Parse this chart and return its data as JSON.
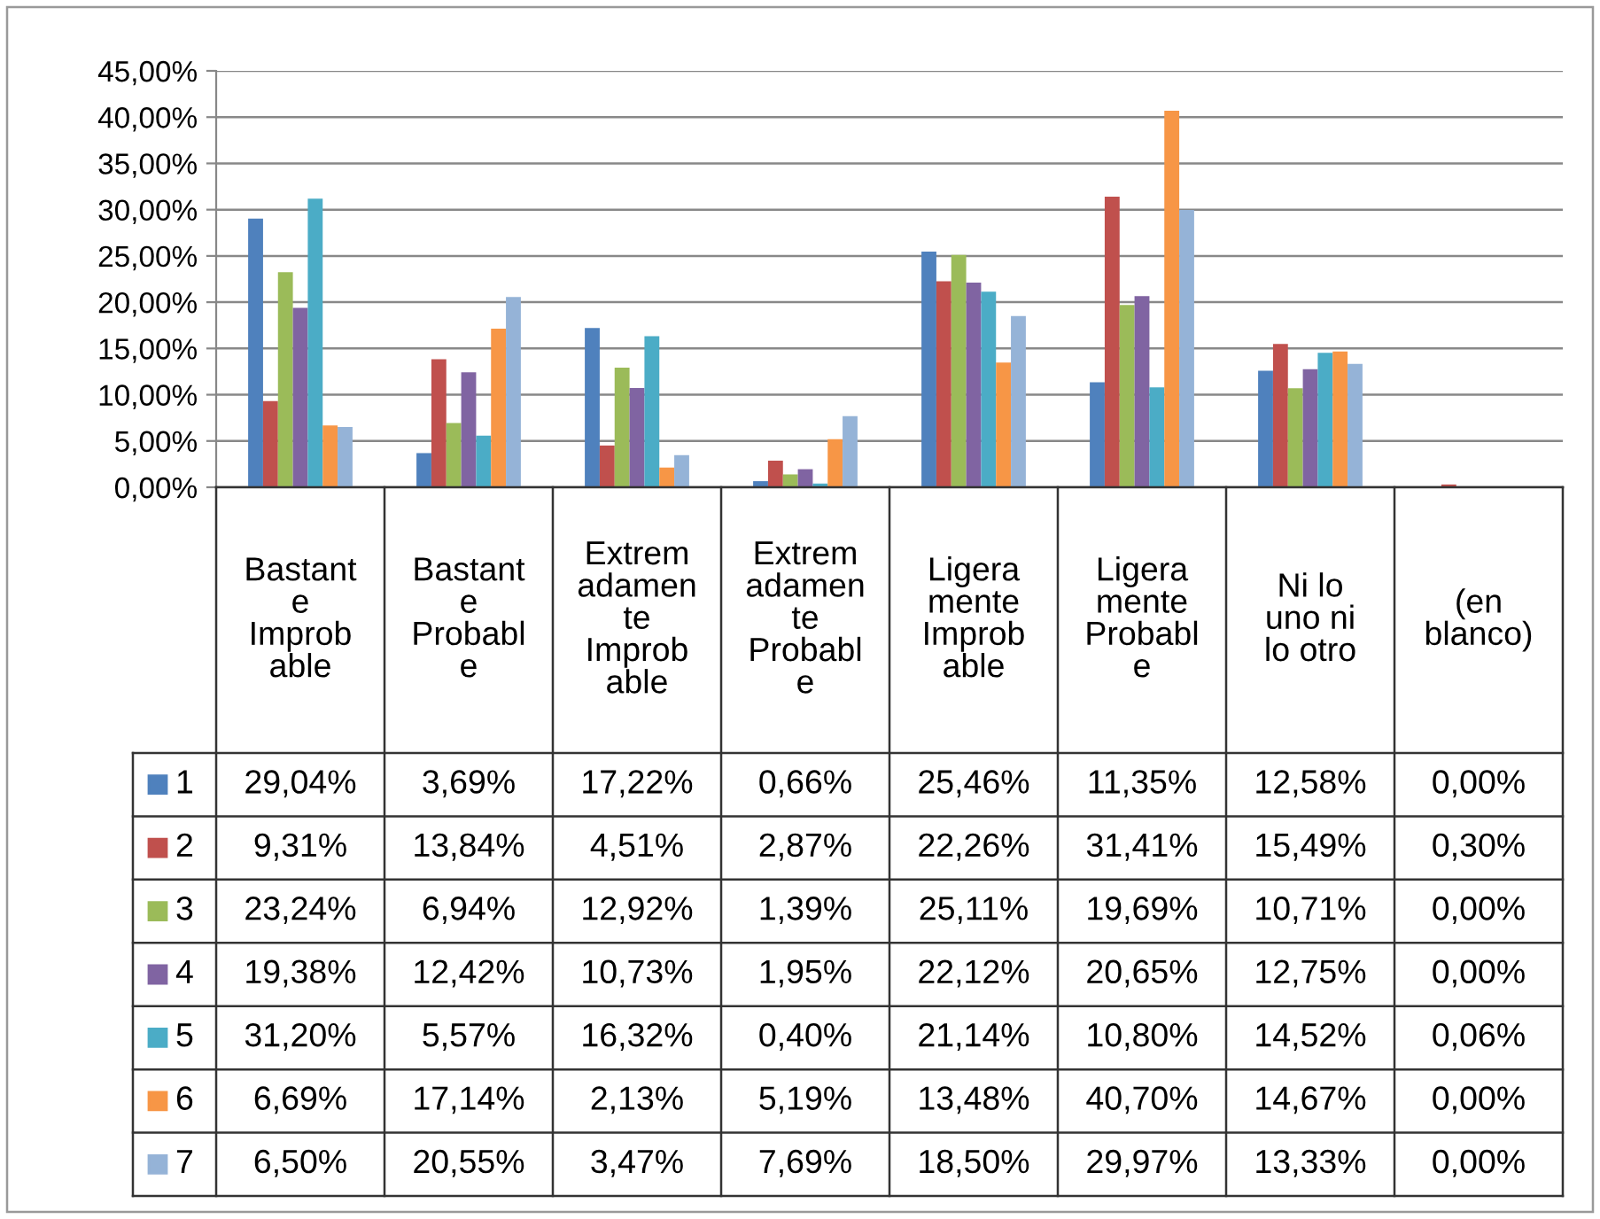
{
  "chart_data": {
    "type": "bar",
    "categories": [
      "Bastant\ne\nImprob\nable",
      "Bastant\ne\nProbabl\ne",
      "Extrem\nadamen\nte\nImprob\nable",
      "Extrem\nadamen\nte\nProbabl\ne",
      "Ligera\nmente\nImprob\nable",
      "Ligera\nmente\nProbabl\ne",
      "Ni lo\nuno ni\nlo otro",
      "(en\nblanco)"
    ],
    "series": [
      {
        "name": "1",
        "color": "#4f81bd",
        "values": [
          29.04,
          3.69,
          17.22,
          0.66,
          25.46,
          11.35,
          12.58,
          0.0
        ],
        "value_labels": [
          "29,04%",
          "3,69%",
          "17,22%",
          "0,66%",
          "25,46%",
          "11,35%",
          "12,58%",
          "0,00%"
        ]
      },
      {
        "name": "2",
        "color": "#c0504d",
        "values": [
          9.31,
          13.84,
          4.51,
          2.87,
          22.26,
          31.41,
          15.49,
          0.3
        ],
        "value_labels": [
          "9,31%",
          "13,84%",
          "4,51%",
          "2,87%",
          "22,26%",
          "31,41%",
          "15,49%",
          "0,30%"
        ]
      },
      {
        "name": "3",
        "color": "#9bbb59",
        "values": [
          23.24,
          6.94,
          12.92,
          1.39,
          25.11,
          19.69,
          10.71,
          0.0
        ],
        "value_labels": [
          "23,24%",
          "6,94%",
          "12,92%",
          "1,39%",
          "25,11%",
          "19,69%",
          "10,71%",
          "0,00%"
        ]
      },
      {
        "name": "4",
        "color": "#8064a2",
        "values": [
          19.38,
          12.42,
          10.73,
          1.95,
          22.12,
          20.65,
          12.75,
          0.0
        ],
        "value_labels": [
          "19,38%",
          "12,42%",
          "10,73%",
          "1,95%",
          "22,12%",
          "20,65%",
          "12,75%",
          "0,00%"
        ]
      },
      {
        "name": "5",
        "color": "#4bacc6",
        "values": [
          31.2,
          5.57,
          16.32,
          0.4,
          21.14,
          10.8,
          14.52,
          0.06
        ],
        "value_labels": [
          "31,20%",
          "5,57%",
          "16,32%",
          "0,40%",
          "21,14%",
          "10,80%",
          "14,52%",
          "0,06%"
        ]
      },
      {
        "name": "6",
        "color": "#f79646",
        "values": [
          6.69,
          17.14,
          2.13,
          5.19,
          13.48,
          40.7,
          14.67,
          0.0
        ],
        "value_labels": [
          "6,69%",
          "17,14%",
          "2,13%",
          "5,19%",
          "13,48%",
          "40,70%",
          "14,67%",
          "0,00%"
        ]
      },
      {
        "name": "7",
        "color": "#95b3d7",
        "values": [
          6.5,
          20.55,
          3.47,
          7.69,
          18.5,
          29.97,
          13.33,
          0.0
        ],
        "value_labels": [
          "6,50%",
          "20,55%",
          "3,47%",
          "7,69%",
          "18,50%",
          "29,97%",
          "13,33%",
          "0,00%"
        ]
      }
    ],
    "ylim": [
      0,
      45
    ],
    "yticks": [
      {
        "value": 0,
        "label": "0,00%"
      },
      {
        "value": 5,
        "label": "5,00%"
      },
      {
        "value": 10,
        "label": "10,00%"
      },
      {
        "value": 15,
        "label": "15,00%"
      },
      {
        "value": 20,
        "label": "20,00%"
      },
      {
        "value": 25,
        "label": "25,00%"
      },
      {
        "value": 30,
        "label": "30,00%"
      },
      {
        "value": 35,
        "label": "35,00%"
      },
      {
        "value": 40,
        "label": "40,00%"
      },
      {
        "value": 45,
        "label": "45,00%"
      }
    ],
    "grid": "y",
    "legend": "bottom"
  }
}
